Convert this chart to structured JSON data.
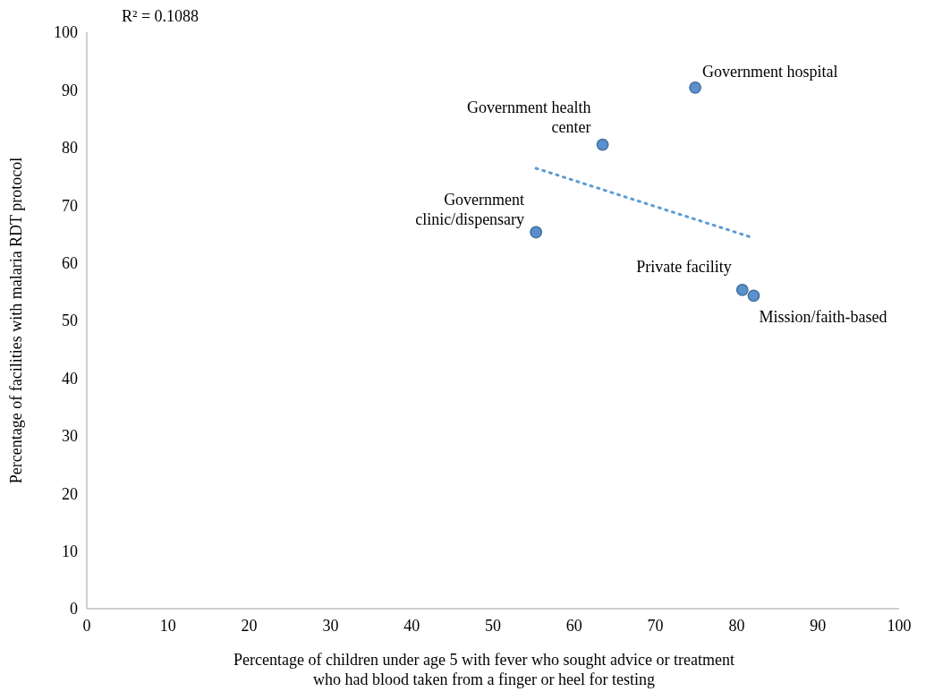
{
  "chart_data": {
    "type": "scatter",
    "xlabel": "Percentage of children under age 5 with fever who sought advice or treatment who had blood taken from a finger or heel for testing",
    "ylabel": "Percentage of facilities with malaria RDT protocol",
    "xlim": [
      0,
      100
    ],
    "ylim": [
      0,
      100
    ],
    "xticks": [
      0,
      10,
      20,
      30,
      40,
      50,
      60,
      70,
      80,
      90,
      100
    ],
    "yticks": [
      0,
      10,
      20,
      30,
      40,
      50,
      60,
      70,
      80,
      90,
      100
    ],
    "marker": "circle",
    "series": [
      {
        "color": "#5b8fce",
        "x": [
          55.3,
          63.5,
          74.9,
          80.7,
          82.1
        ],
        "values": [
          65.3,
          80.5,
          90.4,
          55.3,
          54.3
        ]
      },
      {
        "type": "line",
        "color": "#5b9bd5",
        "line_style": "dotted",
        "marker": "none",
        "x": [
          55.3,
          82.1
        ],
        "values": [
          76.4,
          64.3
        ]
      }
    ],
    "annotations": [
      "R² = 0.1088",
      {
        "text": "Government clinic/dispensary",
        "x": 55.3,
        "y": 65.3
      },
      {
        "text": "Government health center",
        "x": 63.5,
        "y": 80.5
      },
      {
        "text": "Government hospital",
        "x": 74.9,
        "y": 90.4
      },
      {
        "text": "Private facility",
        "x": 80.7,
        "y": 55.3
      },
      {
        "text": "Mission/faith-based",
        "x": 82.1,
        "y": 54.3
      }
    ]
  }
}
